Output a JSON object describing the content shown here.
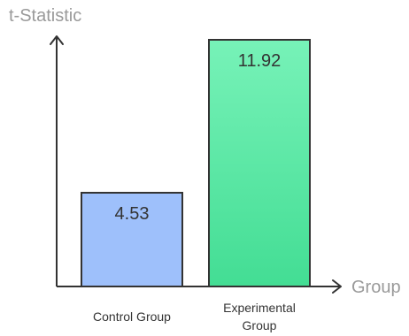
{
  "chart_data": {
    "type": "bar",
    "categories": [
      "Control Group",
      "Experimental Group"
    ],
    "category_lines": [
      [
        "Control Group"
      ],
      [
        "Experimental",
        "Group"
      ]
    ],
    "values": [
      4.53,
      11.92
    ],
    "value_labels": [
      "4.53",
      "11.92"
    ],
    "xlabel": "Group",
    "ylabel": "t-Statistic",
    "ylim": [
      0,
      11.92
    ],
    "grid": false,
    "legend": "none"
  },
  "colors": {
    "bars": [
      "#9ec0fb",
      "#43dd94"
    ],
    "bar_gradient_top": [
      "#9ec0fb",
      "#77f2b8"
    ],
    "bar_outline": "#333333",
    "axis": "#333333",
    "axis_title": "#9a9a9a"
  }
}
